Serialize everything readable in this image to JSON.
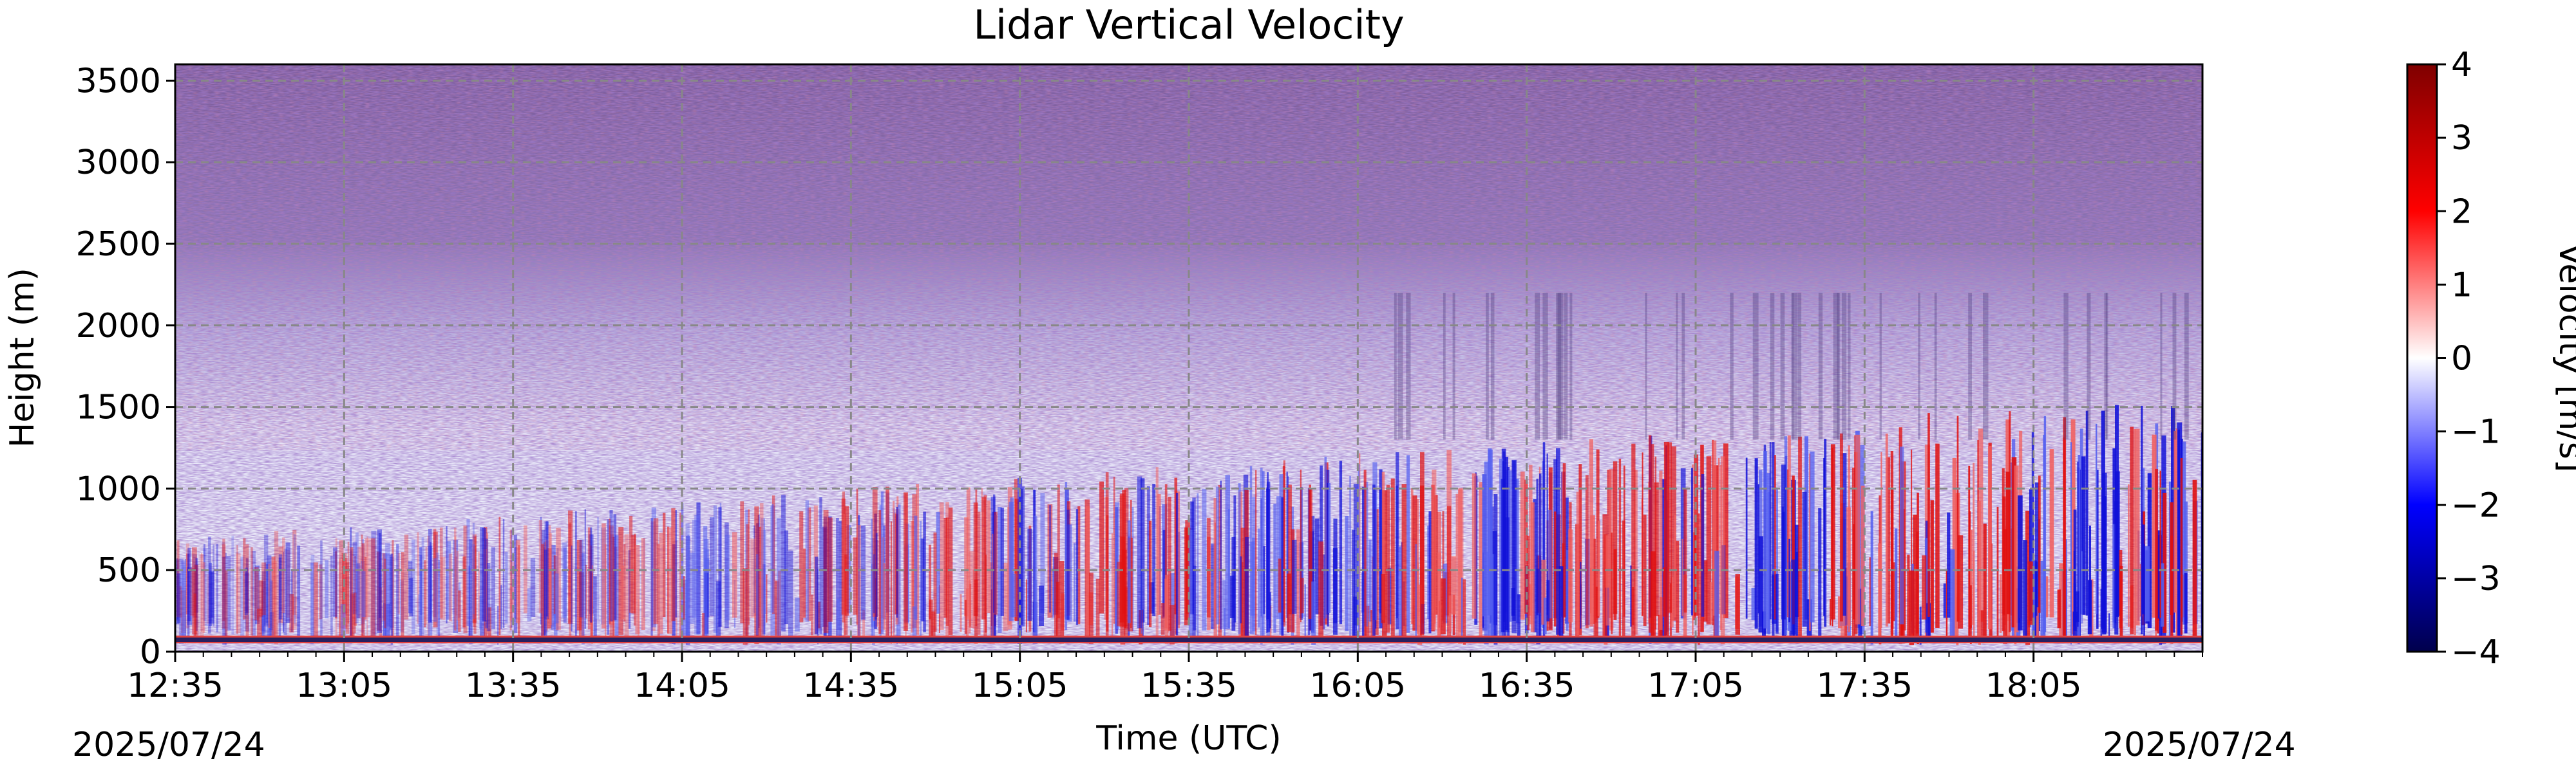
{
  "chart_data": {
    "type": "heatmap",
    "title": "Lidar Vertical Velocity",
    "xlabel": "Time (UTC)",
    "ylabel": "Height (m)",
    "x_ticks": [
      "12:35",
      "13:05",
      "13:35",
      "14:05",
      "14:35",
      "15:05",
      "15:35",
      "16:05",
      "16:35",
      "17:05",
      "17:35",
      "18:05"
    ],
    "x_date_left": "2025/07/24",
    "x_date_right": "2025/07/24",
    "x_range": [
      "12:35",
      "18:35"
    ],
    "y_ticks": [
      0,
      500,
      1000,
      1500,
      2000,
      2500,
      3000,
      3500
    ],
    "ylim": [
      0,
      3600
    ],
    "grid": true,
    "colorbar": {
      "label": "Velocity [m/s]",
      "ticks": [
        4,
        3,
        2,
        1,
        0,
        -1,
        -2,
        -3,
        -4
      ],
      "range": [
        -4,
        4
      ],
      "colormap": [
        "#00004c",
        "#0000ff",
        "#ffffff",
        "#ff0000",
        "#7f0000"
      ]
    },
    "pattern": {
      "noise_above_m": 2000,
      "surface_band_m": [
        40,
        80
      ],
      "strong_updrafts_utc": [
        "14:55",
        "15:20",
        "16:20",
        "16:50",
        "17:05",
        "17:40",
        "17:55"
      ],
      "strong_downdrafts_utc": [
        "14:10",
        "15:45",
        "16:00",
        "16:30",
        "17:20",
        "18:15"
      ]
    }
  }
}
